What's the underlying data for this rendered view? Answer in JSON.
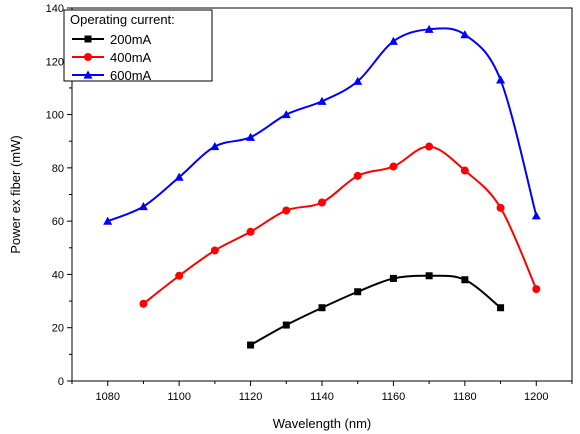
{
  "chart_data": {
    "type": "line",
    "xlabel": "Wavelength (nm)",
    "ylabel": "Power ex fiber (mW)",
    "xlim": [
      1070,
      1210
    ],
    "ylim": [
      0,
      140
    ],
    "xticks": [
      1080,
      1100,
      1120,
      1140,
      1160,
      1180,
      1200
    ],
    "yticks": [
      0,
      20,
      40,
      60,
      80,
      100,
      120,
      140
    ],
    "legend": {
      "title": "Operating current:",
      "placement": "top-left"
    },
    "series": [
      {
        "name": "200mA",
        "color": "#000000",
        "marker": "square",
        "x": [
          1120,
          1130,
          1140,
          1150,
          1160,
          1170,
          1180,
          1190
        ],
        "y": [
          13.5,
          21,
          27.5,
          33.5,
          38.5,
          39.5,
          38,
          27.5
        ]
      },
      {
        "name": "400mA",
        "color": "#ff0000",
        "marker": "circle",
        "x": [
          1090,
          1100,
          1110,
          1120,
          1130,
          1140,
          1150,
          1160,
          1170,
          1180,
          1190,
          1200
        ],
        "y": [
          29,
          39.5,
          49,
          56,
          64,
          67,
          77,
          80.5,
          88,
          79,
          65,
          34.5
        ]
      },
      {
        "name": "600mA",
        "color": "#0000ff",
        "marker": "triangle",
        "x": [
          1080,
          1090,
          1100,
          1110,
          1120,
          1130,
          1140,
          1150,
          1160,
          1170,
          1180,
          1190,
          1200
        ],
        "y": [
          60,
          65.5,
          76.5,
          88,
          91.5,
          100,
          105,
          112.5,
          127.5,
          132,
          130,
          113,
          62
        ]
      }
    ]
  }
}
